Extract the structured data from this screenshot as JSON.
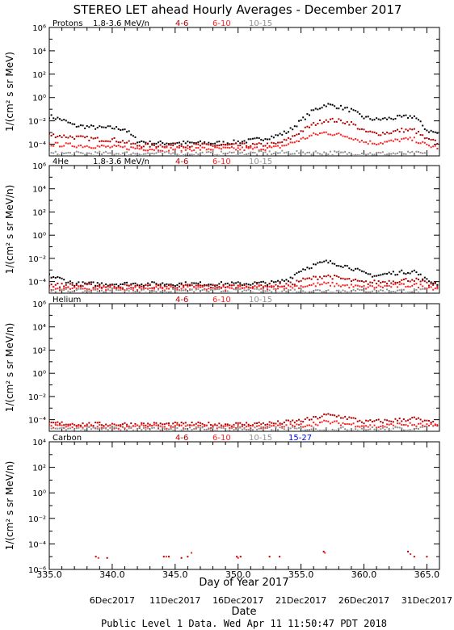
{
  "figure": {
    "title": "STEREO LET ahead Hourly Averages - December 2017",
    "xlabel": "Day of Year 2017",
    "date_axis_label": "Date",
    "footer": "Public Level 1 Data. Wed Apr 11 11:50:47 PDT 2018",
    "x_tick_labels": [
      "335.0",
      "340.0",
      "345.0",
      "350.0",
      "355.0",
      "360.0",
      "365.0"
    ],
    "date_labels": [
      "6Dec2017",
      "11Dec2017",
      "16Dec2017",
      "21Dec2017",
      "26Dec2017",
      "31Dec2017"
    ]
  },
  "panels": [
    {
      "species": "Protons",
      "ylabel": "1/(cm² s sr MeV)",
      "ylim_log10": [
        -5,
        6
      ],
      "ticks": [
        "10⁶",
        "10⁴",
        "10²",
        "10⁰",
        "10⁻²",
        "10⁻⁴"
      ],
      "channels": [
        {
          "label": "1.8-3.6 MeV/n",
          "color": "#000000"
        },
        {
          "label": "4-6",
          "color": "#b00000"
        },
        {
          "label": "6-10",
          "color": "#ff2020"
        },
        {
          "label": "10-15",
          "color": "#909090"
        }
      ]
    },
    {
      "species": "4He",
      "ylabel": "1/(cm² s sr MeV/n)",
      "ylim_log10": [
        -5,
        6
      ],
      "ticks": [
        "10⁶",
        "10⁴",
        "10²",
        "10⁰",
        "10⁻²",
        "10⁻⁴"
      ],
      "channels": [
        {
          "label": "1.8-3.6 MeV/n",
          "color": "#000000"
        },
        {
          "label": "4-6",
          "color": "#b00000"
        },
        {
          "label": "6-10",
          "color": "#ff2020"
        },
        {
          "label": "10-15",
          "color": "#909090"
        }
      ]
    },
    {
      "species": "Helium",
      "ylabel": "1/(cm² s sr MeV/n)",
      "ylim_log10": [
        -5,
        6
      ],
      "ticks": [
        "10⁶",
        "10⁴",
        "10²",
        "10⁰",
        "10⁻²",
        "10⁻⁴"
      ],
      "channels": [
        {
          "label": "4-6",
          "color": "#b00000"
        },
        {
          "label": "6-10",
          "color": "#ff2020"
        },
        {
          "label": "10-15",
          "color": "#909090"
        }
      ]
    },
    {
      "species": "Carbon",
      "ylabel": "1/(cm² s sr MeV/n)",
      "ylim_log10": [
        -6,
        4
      ],
      "ticks": [
        "10⁴",
        "10²",
        "10⁰",
        "10⁻²",
        "10⁻⁴",
        "10⁻⁶"
      ],
      "channels": [
        {
          "label": "4-6",
          "color": "#b00000"
        },
        {
          "label": "6-10",
          "color": "#ff2020"
        },
        {
          "label": "10-15",
          "color": "#909090"
        },
        {
          "label": "15-27",
          "color": "#0000ff"
        }
      ]
    }
  ],
  "chart_data": [
    {
      "type": "scatter",
      "title": "Protons",
      "xlabel": "Day of Year 2017",
      "ylabel": "1/(cm² s sr MeV)",
      "xlim": [
        335,
        366
      ],
      "y_scale": "log",
      "ylim": [
        1e-05,
        1000000.0
      ],
      "series": [
        {
          "name": "1.8-3.6 MeV/n",
          "color": "#000000",
          "x": [
            335,
            336,
            337,
            338,
            339,
            340,
            341,
            342,
            343,
            345,
            347,
            349,
            351,
            352,
            353,
            354,
            355,
            356,
            357,
            358,
            359,
            360,
            361,
            362,
            363,
            364,
            365,
            366
          ],
          "log10y": [
            -1.6,
            -1.9,
            -2.4,
            -2.5,
            -2.6,
            -2.6,
            -2.7,
            -3.7,
            -3.9,
            -3.9,
            -3.9,
            -3.9,
            -3.7,
            -3.5,
            -3.3,
            -2.9,
            -2.0,
            -1.1,
            -0.6,
            -0.8,
            -1.1,
            -1.7,
            -1.9,
            -1.8,
            -1.7,
            -1.6,
            -2.8,
            -3.1
          ]
        },
        {
          "name": "4-6",
          "color": "#b00000",
          "x": [
            335,
            336,
            337,
            338,
            339,
            340,
            341,
            342,
            343,
            345,
            347,
            349,
            351,
            353,
            354,
            355,
            356,
            357,
            358,
            359,
            360,
            361,
            362,
            363,
            364,
            365,
            366
          ],
          "log10y": [
            -3.2,
            -3.3,
            -3.4,
            -3.5,
            -3.6,
            -3.6,
            -3.8,
            -4.1,
            -4.1,
            -4.1,
            -4.1,
            -4.1,
            -4.1,
            -4.0,
            -3.6,
            -2.9,
            -2.3,
            -1.9,
            -2.0,
            -2.2,
            -2.9,
            -3.1,
            -3.0,
            -2.8,
            -2.8,
            -3.6,
            -3.9
          ]
        },
        {
          "name": "6-10",
          "color": "#ff2020",
          "x": [
            335,
            337,
            339,
            341,
            343,
            345,
            347,
            349,
            351,
            353,
            354,
            355,
            356,
            357,
            358,
            359,
            360,
            361,
            362,
            363,
            364,
            365,
            366
          ],
          "log10y": [
            -4.0,
            -4.1,
            -4.2,
            -4.3,
            -4.4,
            -4.4,
            -4.4,
            -4.4,
            -4.4,
            -4.3,
            -4.0,
            -3.6,
            -3.2,
            -3.0,
            -3.2,
            -3.4,
            -3.8,
            -3.9,
            -3.8,
            -3.6,
            -3.6,
            -4.1,
            -4.3
          ]
        },
        {
          "name": "10-15",
          "color": "#909090",
          "x": [
            335,
            340,
            345,
            350,
            355,
            360,
            365
          ],
          "log10y": [
            -4.8,
            -4.8,
            -4.8,
            -4.8,
            -4.7,
            -4.8,
            -4.8
          ]
        }
      ]
    },
    {
      "type": "scatter",
      "title": "4He",
      "xlabel": "Day of Year 2017",
      "ylabel": "1/(cm² s sr MeV/n)",
      "xlim": [
        335,
        366
      ],
      "y_scale": "log",
      "ylim": [
        1e-05,
        1000000.0
      ],
      "series": [
        {
          "name": "1.8-3.6 MeV/n",
          "color": "#000000",
          "x": [
            335,
            336,
            337,
            338,
            340,
            342,
            345,
            350,
            353,
            354,
            355,
            356,
            357,
            358,
            359,
            360,
            361,
            362,
            363,
            364,
            365,
            366
          ],
          "log10y": [
            -3.5,
            -3.8,
            -4.2,
            -4.2,
            -4.2,
            -4.2,
            -4.2,
            -4.2,
            -4.1,
            -3.8,
            -3.0,
            -2.6,
            -2.3,
            -2.5,
            -2.8,
            -3.3,
            -3.5,
            -3.3,
            -3.2,
            -3.1,
            -3.9,
            -4.2
          ]
        },
        {
          "name": "4-6",
          "color": "#b00000",
          "x": [
            335,
            340,
            345,
            350,
            354,
            355,
            356,
            357,
            358,
            359,
            360,
            362,
            363,
            364,
            365,
            366
          ],
          "log10y": [
            -4.3,
            -4.4,
            -4.4,
            -4.4,
            -4.3,
            -3.9,
            -3.7,
            -3.5,
            -3.7,
            -3.9,
            -4.1,
            -4.0,
            -3.9,
            -3.8,
            -4.2,
            -4.4
          ]
        },
        {
          "name": "6-10",
          "color": "#ff2020",
          "x": [
            335,
            340,
            345,
            350,
            355,
            357,
            360,
            364,
            366
          ],
          "log10y": [
            -4.6,
            -4.6,
            -4.6,
            -4.6,
            -4.4,
            -4.2,
            -4.5,
            -4.3,
            -4.6
          ]
        },
        {
          "name": "10-15",
          "color": "#909090",
          "x": [
            335,
            340,
            345,
            350,
            355,
            360,
            365
          ],
          "log10y": [
            -4.8,
            -4.8,
            -4.8,
            -4.8,
            -4.8,
            -4.8,
            -4.8
          ]
        }
      ]
    },
    {
      "type": "scatter",
      "title": "Helium",
      "xlabel": "Day of Year 2017",
      "ylabel": "1/(cm² s sr MeV/n)",
      "xlim": [
        335,
        366
      ],
      "y_scale": "log",
      "ylim": [
        1e-05,
        1000000.0
      ],
      "series": [
        {
          "name": "4-6",
          "color": "#b00000",
          "x": [
            335,
            338,
            341,
            344,
            347,
            350,
            353,
            355,
            356,
            357,
            358,
            359,
            360,
            362,
            363,
            364,
            365,
            366
          ],
          "log10y": [
            -4.3,
            -4.4,
            -4.4,
            -4.4,
            -4.4,
            -4.4,
            -4.3,
            -4.1,
            -3.9,
            -3.6,
            -3.7,
            -3.9,
            -4.2,
            -4.1,
            -4.0,
            -3.9,
            -4.2,
            -4.4
          ]
        },
        {
          "name": "6-10",
          "color": "#ff2020",
          "x": [
            335,
            338,
            341,
            344,
            347,
            350,
            353,
            355,
            357,
            359,
            361,
            363,
            365,
            366
          ],
          "log10y": [
            -4.6,
            -4.6,
            -4.6,
            -4.6,
            -4.6,
            -4.6,
            -4.6,
            -4.5,
            -4.2,
            -4.4,
            -4.6,
            -4.4,
            -4.5,
            -4.6
          ]
        },
        {
          "name": "10-15",
          "color": "#909090",
          "x": [
            335,
            340,
            345,
            350,
            355,
            360,
            365
          ],
          "log10y": [
            -4.8,
            -4.8,
            -4.8,
            -4.8,
            -4.8,
            -4.8,
            -4.8
          ]
        }
      ]
    },
    {
      "type": "scatter",
      "title": "Carbon",
      "xlabel": "Day of Year 2017",
      "ylabel": "1/(cm² s sr MeV/n)",
      "xlim": [
        335,
        366
      ],
      "y_scale": "log",
      "ylim": [
        1e-06,
        10000.0
      ],
      "series": [
        {
          "name": "4-6",
          "color": "#b00000",
          "x": [
            338.7,
            339.6,
            344.1,
            344.5,
            345.5,
            346.0,
            349.9,
            350.2,
            352.5,
            353.3,
            356.8,
            363.5,
            364.0,
            365.0
          ],
          "log10y": [
            -5.0,
            -5.1,
            -5.0,
            -5.0,
            -5.1,
            -5.0,
            -5.0,
            -5.0,
            -5.0,
            -5.0,
            -4.6,
            -4.6,
            -5.0,
            -5.0
          ]
        },
        {
          "name": "6-10",
          "color": "#ff2020",
          "x": [
            338.9,
            344.3,
            346.3,
            350.0,
            356.9,
            363.7
          ],
          "log10y": [
            -5.1,
            -5.0,
            -4.7,
            -5.1,
            -4.7,
            -4.8
          ]
        },
        {
          "name": "10-15",
          "color": "#909090",
          "x": [],
          "log10y": []
        },
        {
          "name": "15-27",
          "color": "#0000ff",
          "x": [],
          "log10y": []
        }
      ]
    }
  ]
}
